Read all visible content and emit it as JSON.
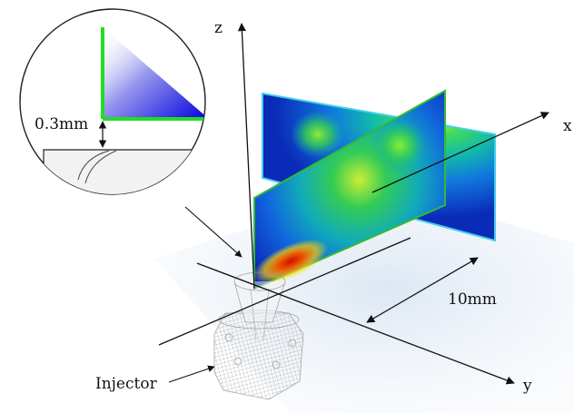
{
  "axes": {
    "x_label": "x",
    "y_label": "y",
    "z_label": "z"
  },
  "annotations": {
    "gap": "0.3mm",
    "distance": "10mm",
    "injector": "Injector"
  },
  "colors": {
    "plane_cyan": "#44ccee",
    "plane_green": "#33bb33",
    "inset_accent": "#22dd22",
    "inset_gradient": "#0000dd",
    "floor_tint": "#dde8f3",
    "arrow": "#111111"
  }
}
